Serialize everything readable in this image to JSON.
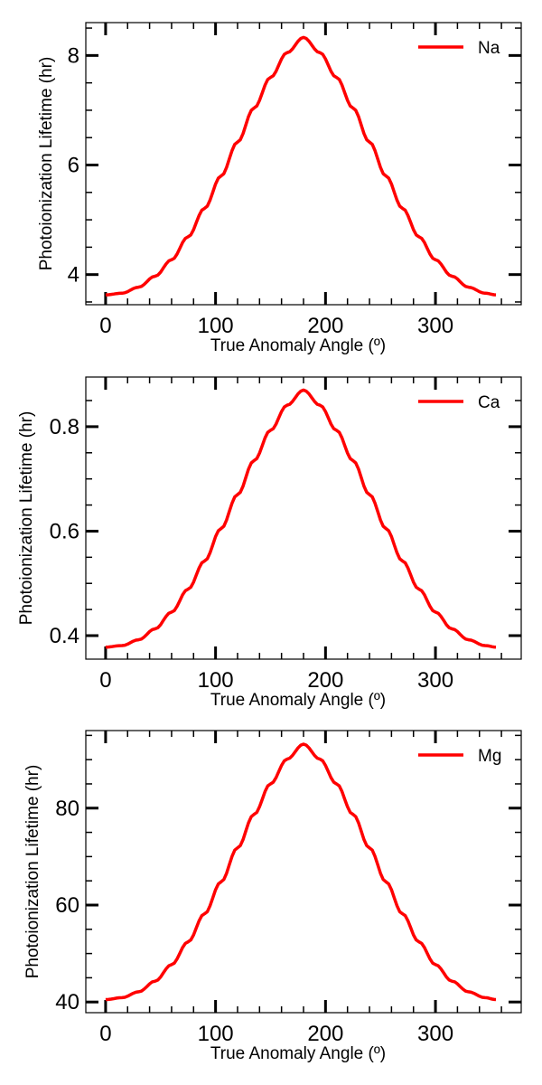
{
  "chart_data": [
    {
      "type": "line",
      "xlabel": "True Anomaly Angle (º)",
      "ylabel": "Photoionization Lifetime (hr)",
      "xlim": [
        -18,
        378
      ],
      "ylim": [
        3.45,
        8.6
      ],
      "xticks": [
        0,
        100,
        200,
        300
      ],
      "yticks": [
        4,
        6,
        8
      ],
      "xtick_labels": [
        "0",
        "100",
        "200",
        "300"
      ],
      "ytick_labels": [
        "4",
        "6",
        "8"
      ],
      "grid": false,
      "legend": "top-right",
      "series": [
        {
          "name": "Na",
          "color": "#ff0000",
          "x": [
            0,
            15,
            30,
            45,
            60,
            75,
            90,
            105,
            120,
            135,
            150,
            165,
            180,
            195,
            210,
            225,
            240,
            255,
            270,
            285,
            300,
            315,
            330,
            345,
            355
          ],
          "values": [
            3.63,
            3.66,
            3.77,
            3.97,
            4.27,
            4.69,
            5.21,
            5.8,
            6.42,
            7.04,
            7.6,
            8.05,
            8.33,
            8.05,
            7.6,
            7.04,
            6.42,
            5.8,
            5.21,
            4.69,
            4.27,
            3.97,
            3.77,
            3.66,
            3.63
          ]
        }
      ]
    },
    {
      "type": "line",
      "xlabel": "True Anomaly Angle (º)",
      "ylabel": "Photoionization Lifetime (hr)",
      "xlim": [
        -18,
        378
      ],
      "ylim": [
        0.355,
        0.895
      ],
      "xticks": [
        0,
        100,
        200,
        300
      ],
      "yticks": [
        0.4,
        0.6,
        0.8
      ],
      "xtick_labels": [
        "0",
        "100",
        "200",
        "300"
      ],
      "ytick_labels": [
        "0.4",
        "0.6",
        "0.8"
      ],
      "grid": false,
      "legend": "top-right",
      "series": [
        {
          "name": "Ca",
          "color": "#ff0000",
          "x": [
            0,
            15,
            30,
            45,
            60,
            75,
            90,
            105,
            120,
            135,
            150,
            165,
            180,
            195,
            210,
            225,
            240,
            255,
            270,
            285,
            300,
            315,
            330,
            345,
            355
          ],
          "values": [
            0.378,
            0.381,
            0.392,
            0.413,
            0.445,
            0.489,
            0.543,
            0.605,
            0.67,
            0.735,
            0.793,
            0.841,
            0.87,
            0.841,
            0.793,
            0.735,
            0.67,
            0.605,
            0.543,
            0.489,
            0.445,
            0.413,
            0.392,
            0.381,
            0.378
          ]
        }
      ]
    },
    {
      "type": "line",
      "xlabel": "True Anomaly Angle (º)",
      "ylabel": "Photoionization Lifetime (hr)",
      "xlim": [
        -18,
        378
      ],
      "ylim": [
        37.8,
        96
      ],
      "xticks": [
        0,
        100,
        200,
        300
      ],
      "yticks": [
        40,
        60,
        80
      ],
      "xtick_labels": [
        "0",
        "100",
        "200",
        "300"
      ],
      "ytick_labels": [
        "40",
        "60",
        "80"
      ],
      "grid": false,
      "legend": "top-right",
      "series": [
        {
          "name": "Mg",
          "color": "#ff0000",
          "x": [
            0,
            15,
            30,
            45,
            60,
            75,
            90,
            105,
            120,
            135,
            150,
            165,
            180,
            195,
            210,
            225,
            240,
            255,
            270,
            285,
            300,
            315,
            330,
            345,
            355
          ],
          "values": [
            40.5,
            40.9,
            42.1,
            44.3,
            47.7,
            52.4,
            58.2,
            64.8,
            71.8,
            78.7,
            85,
            90.1,
            93.2,
            90.1,
            85,
            78.7,
            71.8,
            64.8,
            58.2,
            52.4,
            47.7,
            44.3,
            42.1,
            40.9,
            40.5
          ]
        }
      ]
    }
  ]
}
